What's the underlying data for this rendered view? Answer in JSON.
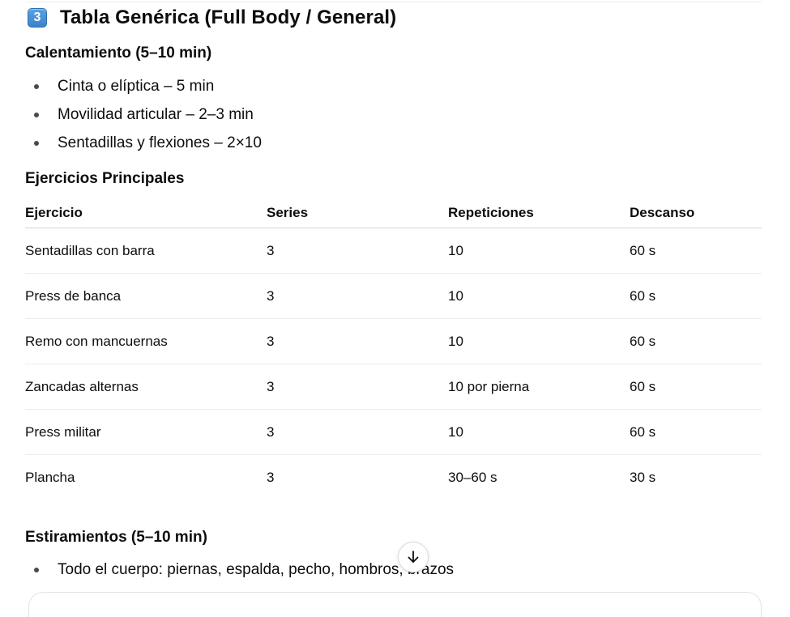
{
  "section": {
    "icon": "keycap-3-icon",
    "icon_text": "3",
    "title": "Tabla Genérica (Full Body / General)"
  },
  "warmup": {
    "heading": "Calentamiento (5–10 min)",
    "items": [
      "Cinta o elíptica – 5 min",
      "Movilidad articular – 2–3 min",
      "Sentadillas y flexiones – 2×10"
    ]
  },
  "main": {
    "heading": "Ejercicios Principales",
    "table": {
      "headers": [
        "Ejercicio",
        "Series",
        "Repeticiones",
        "Descanso"
      ],
      "rows": [
        [
          "Sentadillas con barra",
          "3",
          "10",
          "60 s"
        ],
        [
          "Press de banca",
          "3",
          "10",
          "60 s"
        ],
        [
          "Remo con mancuernas",
          "3",
          "10",
          "60 s"
        ],
        [
          "Zancadas alternas",
          "3",
          "10 por pierna",
          "60 s"
        ],
        [
          "Press militar",
          "3",
          "10",
          "60 s"
        ],
        [
          "Plancha",
          "3",
          "30–60 s",
          "30 s"
        ]
      ]
    }
  },
  "stretching": {
    "heading": "Estiramientos (5–10 min)",
    "items": [
      "Todo el cuerpo: piernas, espalda, pecho, hombros, brazos"
    ]
  },
  "controls": {
    "scroll_down_icon": "arrow-down-icon"
  },
  "colors": {
    "keycap": "#3b82c9",
    "text": "#0d0d0d"
  }
}
